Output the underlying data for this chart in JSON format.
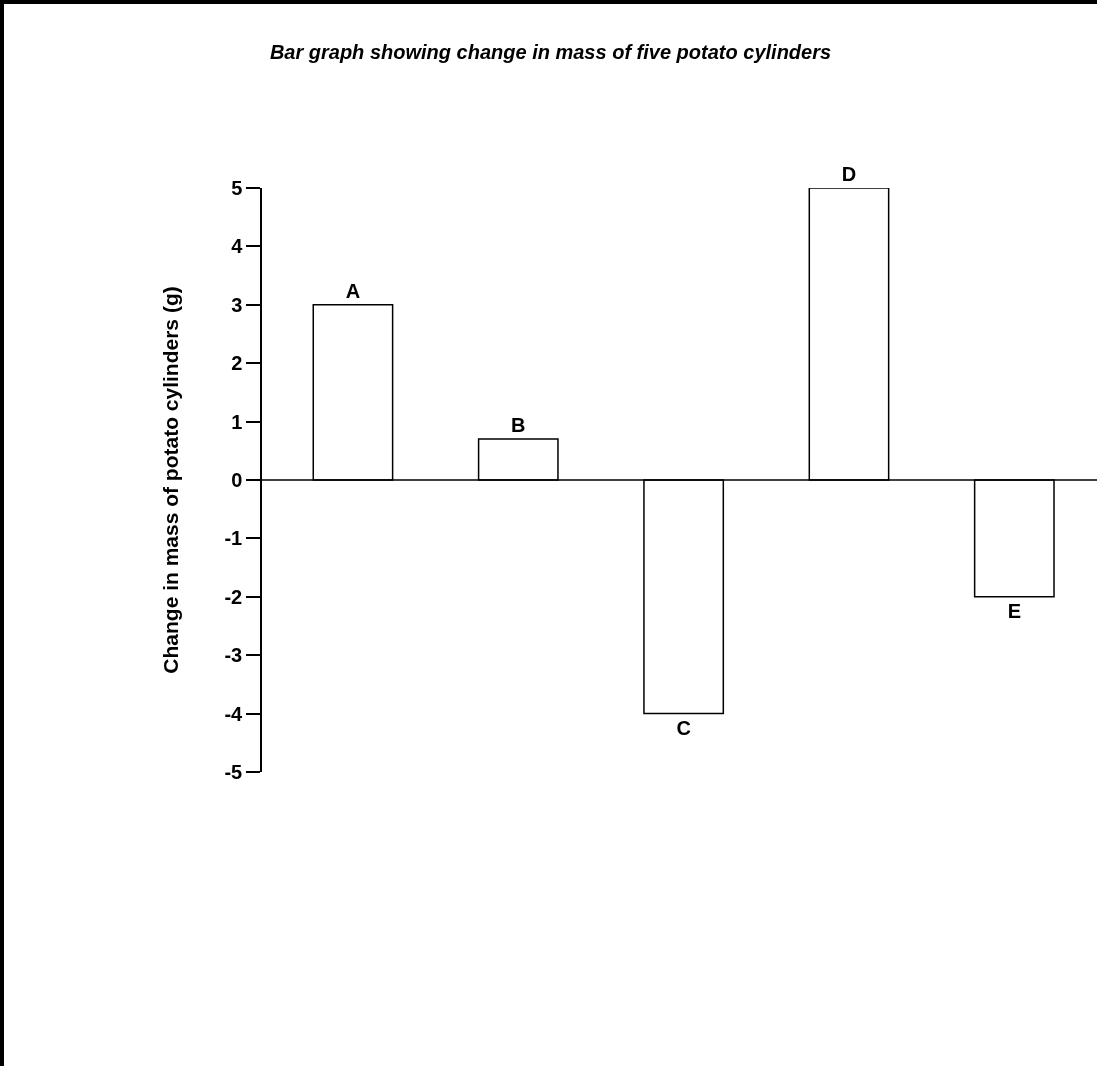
{
  "chart_data": {
    "type": "bar",
    "title": "Bar graph showing change in mass of five potato cylinders",
    "ylabel": "Change in mass of potato cylinders (g)",
    "categories": [
      "A",
      "B",
      "C",
      "D",
      "E"
    ],
    "values": [
      3,
      0.7,
      -4,
      5,
      -2
    ],
    "color": "#ffffff",
    "ylim": [
      -5,
      5
    ],
    "yticks": [
      -5,
      -4,
      -3,
      -2,
      -1,
      0,
      1,
      2,
      3,
      4,
      5
    ],
    "ref_lines": [
      {
        "axis": "y",
        "value": 0,
        "color": "#000000"
      }
    ],
    "grid": false,
    "legend": false,
    "tick_labels": "y"
  }
}
